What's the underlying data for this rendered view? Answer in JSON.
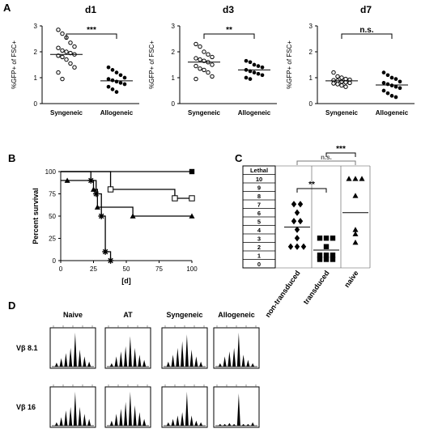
{
  "panel_labels": {
    "A": "A",
    "B": "B",
    "C": "C",
    "D": "D"
  },
  "colors": {
    "ink": "#000000",
    "background": "#ffffff",
    "grid_line": "#888888"
  },
  "chart_data": [
    {
      "id": "A-d1",
      "type": "scatter",
      "title": "d1",
      "ylabel": "%GFP+ of FSC+",
      "ylim": [
        0,
        3
      ],
      "yticks": [
        "0",
        "1",
        "2",
        "3"
      ],
      "categories": [
        "Syngeneic",
        "Allogeneic"
      ],
      "series": [
        {
          "marker": "open-circle",
          "values": [
            2.85,
            2.7,
            2.55,
            2.35,
            2.2,
            2.15,
            2.05,
            2.0,
            1.95,
            1.9,
            1.85,
            1.8,
            1.7,
            1.55,
            1.4,
            1.2,
            0.95
          ]
        },
        {
          "marker": "filled-circle",
          "values": [
            1.4,
            1.3,
            1.2,
            1.1,
            1.0,
            0.95,
            0.9,
            0.85,
            0.8,
            0.75,
            0.65,
            0.55,
            0.45
          ]
        }
      ],
      "means": [
        1.9,
        0.88
      ],
      "significance": "***"
    },
    {
      "id": "A-d3",
      "type": "scatter",
      "title": "d3",
      "ylabel": "%GFP+ of FSC+",
      "ylim": [
        0,
        3
      ],
      "yticks": [
        "0",
        "1",
        "2",
        "3"
      ],
      "categories": [
        "Syngeneic",
        "Allogeneic"
      ],
      "series": [
        {
          "marker": "open-circle",
          "values": [
            2.3,
            2.2,
            2.0,
            1.9,
            1.8,
            1.75,
            1.7,
            1.65,
            1.6,
            1.5,
            1.45,
            1.35,
            1.3,
            1.2,
            1.05,
            0.95
          ]
        },
        {
          "marker": "filled-circle",
          "values": [
            1.65,
            1.6,
            1.5,
            1.45,
            1.4,
            1.3,
            1.25,
            1.2,
            1.15,
            1.1,
            1.0,
            0.95
          ]
        }
      ],
      "means": [
        1.6,
        1.3
      ],
      "significance": "**"
    },
    {
      "id": "A-d7",
      "type": "scatter",
      "title": "d7",
      "ylabel": "%GFP+ of FSC+",
      "ylim": [
        0,
        3
      ],
      "yticks": [
        "0",
        "1",
        "2",
        "3"
      ],
      "categories": [
        "Syngeneic",
        "Allogeneic"
      ],
      "series": [
        {
          "marker": "open-circle",
          "values": [
            1.2,
            1.05,
            1.0,
            0.95,
            0.92,
            0.9,
            0.88,
            0.85,
            0.82,
            0.8,
            0.78,
            0.75,
            0.7,
            0.65
          ]
        },
        {
          "marker": "filled-circle",
          "values": [
            1.2,
            1.1,
            1.0,
            0.95,
            0.85,
            0.8,
            0.75,
            0.7,
            0.65,
            0.6,
            0.5,
            0.4,
            0.3,
            0.25
          ]
        }
      ],
      "means": [
        0.88,
        0.72
      ],
      "significance": "n.s."
    },
    {
      "id": "B",
      "type": "line",
      "subtype": "step",
      "ylabel": "Percent survival",
      "xlabel": "[d]",
      "xlim": [
        0,
        100
      ],
      "ylim": [
        0,
        100
      ],
      "xticks": [
        "0",
        "25",
        "50",
        "75",
        "100"
      ],
      "yticks": [
        "0",
        "25",
        "50",
        "75",
        "100"
      ],
      "series": [
        {
          "marker": "filled-square",
          "points": [
            [
              0,
              100
            ],
            [
              100,
              100
            ]
          ],
          "censored": [
            [
              100,
              100
            ]
          ]
        },
        {
          "marker": "open-square",
          "points": [
            [
              0,
              100
            ],
            [
              38,
              100
            ],
            [
              38,
              80
            ],
            [
              87,
              80
            ],
            [
              87,
              70
            ],
            [
              100,
              70
            ]
          ],
          "censored": [
            [
              38,
              80
            ],
            [
              87,
              70
            ],
            [
              100,
              70
            ]
          ]
        },
        {
          "marker": "filled-triangle",
          "points": [
            [
              0,
              90
            ],
            [
              5,
              90
            ],
            [
              5,
              90
            ],
            [
              25,
              90
            ],
            [
              25,
              80
            ],
            [
              28,
              80
            ],
            [
              28,
              60
            ],
            [
              55,
              60
            ],
            [
              55,
              50
            ],
            [
              100,
              50
            ]
          ],
          "censored": [
            [
              5,
              90
            ],
            [
              25,
              80
            ],
            [
              28,
              60
            ],
            [
              55,
              50
            ],
            [
              100,
              50
            ]
          ]
        },
        {
          "marker": "asterisk",
          "points": [
            [
              0,
              100
            ],
            [
              23,
              100
            ],
            [
              23,
              90
            ],
            [
              27,
              90
            ],
            [
              27,
              75
            ],
            [
              31,
              75
            ],
            [
              31,
              50
            ],
            [
              34,
              50
            ],
            [
              34,
              10
            ],
            [
              38,
              10
            ],
            [
              38,
              0
            ]
          ],
          "censored": [
            [
              23,
              90
            ],
            [
              27,
              75
            ],
            [
              31,
              50
            ],
            [
              34,
              10
            ],
            [
              38,
              0
            ]
          ]
        }
      ]
    },
    {
      "id": "C",
      "type": "scatter",
      "header": "Lethal",
      "ylim": [
        0,
        10
      ],
      "yticks": [
        "0",
        "1",
        "2",
        "3",
        "4",
        "5",
        "6",
        "7",
        "8",
        "9",
        "10"
      ],
      "categories": [
        "non-transduced",
        "transduced",
        "naive"
      ],
      "series": [
        {
          "marker": "filled-diamond",
          "values": [
            7,
            7,
            6,
            5,
            5,
            4,
            3,
            2,
            2,
            2
          ]
        },
        {
          "marker": "filled-square",
          "values": [
            3,
            3,
            3,
            2,
            1,
            1,
            1,
            0.5,
            0.5,
            0.5
          ]
        },
        {
          "marker": "filled-triangle",
          "values": [
            10,
            10,
            10,
            8,
            4,
            3.5,
            2.5
          ]
        }
      ],
      "means": [
        4.3,
        1.6,
        6.0
      ],
      "brackets": [
        {
          "from": "non-transduced",
          "to": "naive",
          "label": "n.s."
        },
        {
          "from": "non-transduced",
          "to": "transduced",
          "label": "**"
        },
        {
          "from": "transduced",
          "to": "naive",
          "label": "***"
        }
      ]
    }
  ],
  "panel_D": {
    "columns": [
      "Naive",
      "AT",
      "Syngeneic",
      "Allogeneic"
    ],
    "rows": [
      {
        "label": "Vβ 8.1",
        "profiles": [
          [
            0.12,
            0.25,
            0.4,
            0.55,
            1.0,
            0.5,
            0.3,
            0.15
          ],
          [
            0.1,
            0.3,
            0.45,
            0.6,
            0.9,
            0.55,
            0.35,
            0.2
          ],
          [
            0.15,
            0.35,
            0.55,
            0.75,
            0.95,
            0.5,
            0.3,
            0.15
          ],
          [
            0.1,
            0.3,
            0.45,
            0.55,
            1.0,
            0.35,
            0.2,
            0.1
          ]
        ]
      },
      {
        "label": "Vβ 16",
        "profiles": [
          [
            0.1,
            0.25,
            0.45,
            0.55,
            1.0,
            0.55,
            0.35,
            0.2
          ],
          [
            0.15,
            0.35,
            0.5,
            0.7,
            1.0,
            0.6,
            0.4,
            0.2
          ],
          [
            0.1,
            0.2,
            0.3,
            0.4,
            1.0,
            0.3,
            0.15,
            0.1
          ],
          [
            0.05,
            0.05,
            0.08,
            0.05,
            0.95,
            0.05,
            0.05,
            0.1
          ]
        ]
      }
    ]
  }
}
